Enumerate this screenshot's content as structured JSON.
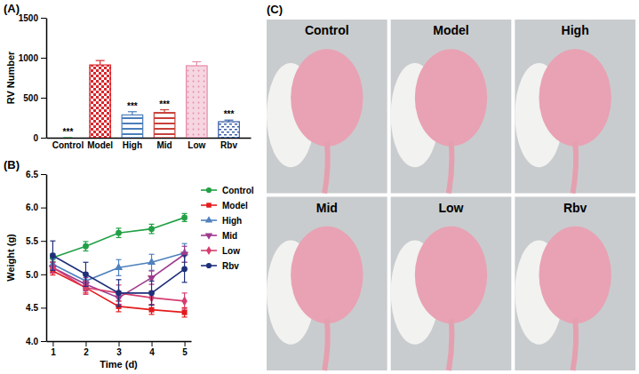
{
  "chart_data": [
    {
      "panel": "(A)",
      "type": "bar",
      "categories": [
        "Control",
        "Model",
        "High",
        "Mid",
        "Low",
        "Rbv"
      ],
      "values": [
        0,
        910,
        285,
        315,
        900,
        200
      ],
      "errors": [
        0,
        55,
        40,
        35,
        50,
        20
      ],
      "significance": [
        "***",
        null,
        "***",
        "***",
        null,
        "***"
      ],
      "colors": [
        "#2e9a48",
        "#d9262c",
        "#4a7ebb",
        "#c8403a",
        "#e58aa8",
        "#3a5fa8"
      ],
      "y_label": "RV Number",
      "ylim": [
        0,
        1500
      ],
      "yticks": [
        0,
        500,
        1000,
        1500
      ]
    },
    {
      "panel": "(B)",
      "type": "line",
      "x": [
        1,
        2,
        3,
        4,
        5
      ],
      "xlim": [
        0.8,
        5.2
      ],
      "xticks": [
        1,
        2,
        3,
        4,
        5
      ],
      "ylim": [
        4,
        6.5
      ],
      "yticks": [
        {
          "value": 4,
          "label": "4.0"
        },
        4.5,
        {
          "value": 5,
          "label": "5.0"
        },
        5.5,
        {
          "value": 6,
          "label": "6.0"
        },
        6.5
      ],
      "x_label": "Time (d)",
      "y_label": "Weight (g)",
      "legend": "right",
      "series": [
        {
          "name": "Control",
          "color": "#22a045",
          "marker": "circle",
          "values": [
            5.25,
            5.42,
            5.62,
            5.68,
            5.85
          ],
          "errors": [
            0.06,
            0.07,
            0.07,
            0.07,
            0.06
          ]
        },
        {
          "name": "Model",
          "color": "#e41a1c",
          "marker": "square",
          "values": [
            5.05,
            4.8,
            4.52,
            4.47,
            4.43
          ],
          "errors": [
            0.06,
            0.08,
            0.08,
            0.07,
            0.07
          ]
        },
        {
          "name": "High",
          "color": "#4f81bd",
          "marker": "triangle-up",
          "values": [
            5.15,
            4.9,
            5.1,
            5.18,
            5.32
          ],
          "errors": [
            0.08,
            0.12,
            0.12,
            0.12,
            0.14
          ]
        },
        {
          "name": "Mid",
          "color": "#9e3a8c",
          "marker": "triangle-down",
          "values": [
            5.1,
            4.85,
            4.65,
            4.95,
            5.3
          ],
          "errors": [
            0.08,
            0.1,
            0.1,
            0.1,
            0.12
          ]
        },
        {
          "name": "Low",
          "color": "#d63e6e",
          "marker": "diamond",
          "values": [
            5.1,
            4.8,
            4.72,
            4.65,
            4.6
          ],
          "errors": [
            0.08,
            0.1,
            0.12,
            0.1,
            0.12
          ]
        },
        {
          "name": "Rbv",
          "color": "#1f2f7a",
          "marker": "circle",
          "values": [
            5.28,
            5.0,
            4.72,
            4.72,
            5.08
          ],
          "errors": [
            0.22,
            0.18,
            0.2,
            0.18,
            0.2
          ]
        }
      ]
    }
  ],
  "photo_panel": {
    "panel": "(C)",
    "labels": [
      "Control",
      "Model",
      "High",
      "Mid",
      "Low",
      "Rbv"
    ]
  }
}
